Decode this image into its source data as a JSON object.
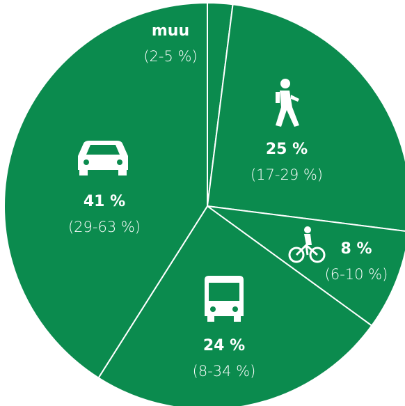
{
  "chart_data": {
    "type": "pie",
    "categories": [
      "muu",
      null,
      null,
      null,
      null
    ],
    "values": [
      2,
      25,
      8,
      24,
      41
    ],
    "value_labels": [
      null,
      "25 %",
      "8 %",
      "24 %",
      "41 %"
    ],
    "range_labels": [
      "(2-5 %)",
      "(17-29 %)",
      "(6-10 %)",
      "(8-34 %)",
      "(29-63 %)"
    ],
    "color": "#0b8b4e"
  }
}
